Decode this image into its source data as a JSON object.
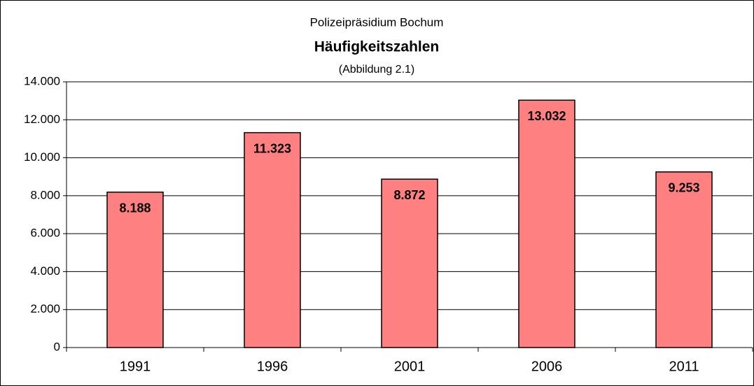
{
  "chart_data": {
    "type": "bar",
    "title": "Häufigkeitszahlen",
    "supertitle": "Polizeipräsidium Bochum",
    "subtitle": "(Abbildung 2.1)",
    "categories": [
      "1991",
      "1996",
      "2001",
      "2006",
      "2011"
    ],
    "values": [
      8188,
      11323,
      8872,
      13032,
      9253
    ],
    "value_labels": [
      "8.188",
      "11.323",
      "8.872",
      "13.032",
      "9.253"
    ],
    "color": "#ff8080",
    "ylim": [
      0,
      14000
    ],
    "yticks": [
      0,
      {
        "value": 2000,
        "label": "2.000"
      },
      {
        "value": 4000,
        "label": "4.000"
      },
      {
        "value": 6000,
        "label": "6.000"
      },
      {
        "value": 8000,
        "label": "8.000"
      },
      {
        "value": 10000,
        "label": "10.000"
      },
      {
        "value": 12000,
        "label": "12.000"
      },
      {
        "value": 14000,
        "label": "14.000"
      }
    ],
    "grid": true
  }
}
